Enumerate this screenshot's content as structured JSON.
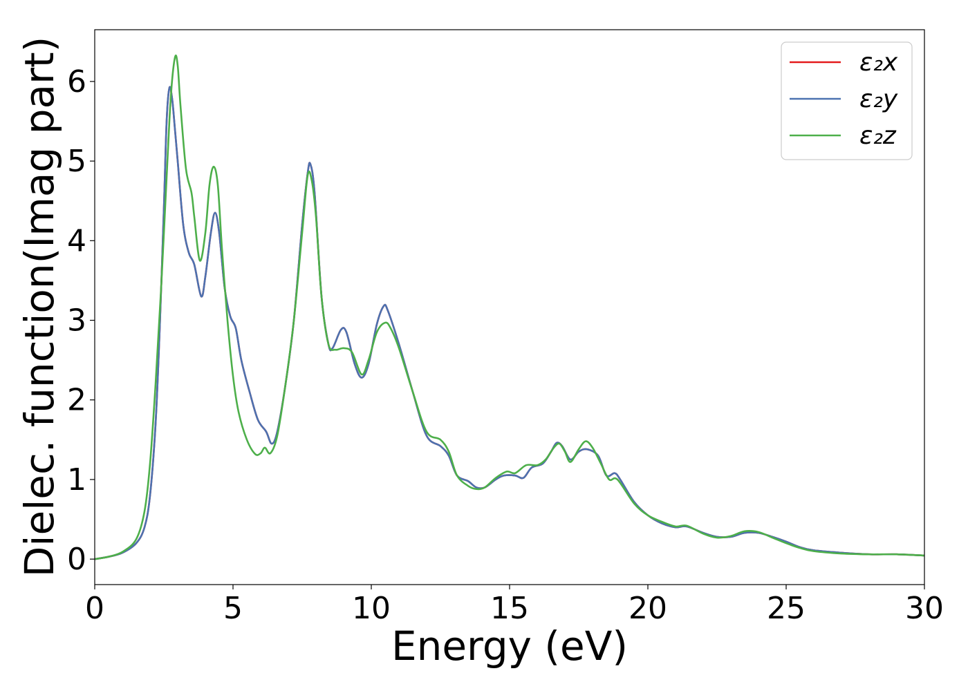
{
  "chart_data": {
    "type": "line",
    "xlabel": "Energy (eV)",
    "ylabel": "Dielec. function(Imag part)",
    "xlim": [
      0,
      30
    ],
    "ylim": [
      -0.32,
      6.65
    ],
    "x_ticks": [
      "0",
      "5",
      "10",
      "15",
      "20",
      "25",
      "30"
    ],
    "x_tick_values": [
      0,
      5,
      10,
      15,
      20,
      25,
      30
    ],
    "y_ticks": [
      "0",
      "1",
      "2",
      "3",
      "4",
      "5",
      "6"
    ],
    "y_tick_values": [
      0,
      1,
      2,
      3,
      4,
      5,
      6
    ],
    "grid": false,
    "legend_placement": "top-right",
    "series": [
      {
        "name": "ε₂x",
        "color": "#e41a1c",
        "points": [
          [
            0,
            0
          ],
          [
            0.5,
            0.03
          ],
          [
            1,
            0.08
          ],
          [
            1.5,
            0.2
          ],
          [
            1.8,
            0.4
          ],
          [
            2.0,
            0.8
          ],
          [
            2.2,
            1.7
          ],
          [
            2.35,
            2.9
          ],
          [
            2.5,
            4.4
          ],
          [
            2.6,
            5.5
          ],
          [
            2.7,
            5.92
          ],
          [
            2.8,
            5.78
          ],
          [
            2.9,
            5.4
          ],
          [
            3.0,
            5.0
          ],
          [
            3.2,
            4.2
          ],
          [
            3.4,
            3.85
          ],
          [
            3.6,
            3.7
          ],
          [
            3.85,
            3.3
          ],
          [
            4.0,
            3.55
          ],
          [
            4.2,
            4.1
          ],
          [
            4.35,
            4.35
          ],
          [
            4.5,
            4.1
          ],
          [
            4.7,
            3.4
          ],
          [
            4.9,
            3.05
          ],
          [
            5.1,
            2.9
          ],
          [
            5.3,
            2.5
          ],
          [
            5.6,
            2.1
          ],
          [
            5.9,
            1.75
          ],
          [
            6.2,
            1.6
          ],
          [
            6.4,
            1.45
          ],
          [
            6.6,
            1.6
          ],
          [
            6.9,
            2.2
          ],
          [
            7.2,
            3.0
          ],
          [
            7.5,
            4.2
          ],
          [
            7.7,
            4.85
          ],
          [
            7.8,
            4.96
          ],
          [
            7.95,
            4.6
          ],
          [
            8.2,
            3.3
          ],
          [
            8.45,
            2.7
          ],
          [
            8.6,
            2.65
          ],
          [
            8.9,
            2.88
          ],
          [
            9.1,
            2.85
          ],
          [
            9.4,
            2.45
          ],
          [
            9.65,
            2.28
          ],
          [
            9.9,
            2.45
          ],
          [
            10.2,
            2.95
          ],
          [
            10.45,
            3.18
          ],
          [
            10.6,
            3.12
          ],
          [
            11.0,
            2.7
          ],
          [
            11.5,
            2.1
          ],
          [
            12.0,
            1.55
          ],
          [
            12.5,
            1.42
          ],
          [
            12.8,
            1.3
          ],
          [
            13.1,
            1.05
          ],
          [
            13.5,
            0.98
          ],
          [
            13.8,
            0.9
          ],
          [
            14.1,
            0.9
          ],
          [
            14.5,
            1.0
          ],
          [
            14.8,
            1.05
          ],
          [
            15.2,
            1.05
          ],
          [
            15.5,
            1.02
          ],
          [
            15.8,
            1.15
          ],
          [
            16.2,
            1.2
          ],
          [
            16.5,
            1.35
          ],
          [
            16.7,
            1.46
          ],
          [
            16.9,
            1.42
          ],
          [
            17.2,
            1.25
          ],
          [
            17.5,
            1.35
          ],
          [
            17.8,
            1.38
          ],
          [
            18.2,
            1.3
          ],
          [
            18.5,
            1.05
          ],
          [
            18.8,
            1.08
          ],
          [
            19.0,
            1.0
          ],
          [
            19.5,
            0.72
          ],
          [
            20.0,
            0.55
          ],
          [
            20.5,
            0.45
          ],
          [
            21.0,
            0.4
          ],
          [
            21.4,
            0.41
          ],
          [
            22.0,
            0.33
          ],
          [
            22.5,
            0.28
          ],
          [
            23.0,
            0.28
          ],
          [
            23.5,
            0.33
          ],
          [
            24.0,
            0.33
          ],
          [
            24.5,
            0.28
          ],
          [
            25.0,
            0.22
          ],
          [
            25.5,
            0.15
          ],
          [
            26.0,
            0.11
          ],
          [
            27.0,
            0.08
          ],
          [
            28.0,
            0.06
          ],
          [
            29.0,
            0.06
          ],
          [
            30.0,
            0.045
          ]
        ]
      },
      {
        "name": "ε₂y",
        "color": "#4c72b0",
        "points": [
          [
            0,
            0
          ],
          [
            0.5,
            0.03
          ],
          [
            1,
            0.08
          ],
          [
            1.5,
            0.2
          ],
          [
            1.8,
            0.4
          ],
          [
            2.0,
            0.8
          ],
          [
            2.2,
            1.7
          ],
          [
            2.35,
            2.9
          ],
          [
            2.5,
            4.4
          ],
          [
            2.6,
            5.5
          ],
          [
            2.7,
            5.92
          ],
          [
            2.8,
            5.78
          ],
          [
            2.9,
            5.4
          ],
          [
            3.0,
            5.0
          ],
          [
            3.2,
            4.2
          ],
          [
            3.4,
            3.85
          ],
          [
            3.6,
            3.7
          ],
          [
            3.85,
            3.3
          ],
          [
            4.0,
            3.55
          ],
          [
            4.2,
            4.1
          ],
          [
            4.35,
            4.35
          ],
          [
            4.5,
            4.1
          ],
          [
            4.7,
            3.4
          ],
          [
            4.9,
            3.05
          ],
          [
            5.1,
            2.9
          ],
          [
            5.3,
            2.5
          ],
          [
            5.6,
            2.1
          ],
          [
            5.9,
            1.75
          ],
          [
            6.2,
            1.6
          ],
          [
            6.4,
            1.45
          ],
          [
            6.6,
            1.6
          ],
          [
            6.9,
            2.2
          ],
          [
            7.2,
            3.0
          ],
          [
            7.5,
            4.2
          ],
          [
            7.7,
            4.85
          ],
          [
            7.8,
            4.96
          ],
          [
            7.95,
            4.6
          ],
          [
            8.2,
            3.3
          ],
          [
            8.45,
            2.7
          ],
          [
            8.6,
            2.65
          ],
          [
            8.9,
            2.88
          ],
          [
            9.1,
            2.85
          ],
          [
            9.4,
            2.45
          ],
          [
            9.65,
            2.28
          ],
          [
            9.9,
            2.45
          ],
          [
            10.2,
            2.95
          ],
          [
            10.45,
            3.18
          ],
          [
            10.6,
            3.12
          ],
          [
            11.0,
            2.7
          ],
          [
            11.5,
            2.1
          ],
          [
            12.0,
            1.55
          ],
          [
            12.5,
            1.42
          ],
          [
            12.8,
            1.3
          ],
          [
            13.1,
            1.05
          ],
          [
            13.5,
            0.98
          ],
          [
            13.8,
            0.9
          ],
          [
            14.1,
            0.9
          ],
          [
            14.5,
            1.0
          ],
          [
            14.8,
            1.05
          ],
          [
            15.2,
            1.05
          ],
          [
            15.5,
            1.02
          ],
          [
            15.8,
            1.15
          ],
          [
            16.2,
            1.2
          ],
          [
            16.5,
            1.35
          ],
          [
            16.7,
            1.46
          ],
          [
            16.9,
            1.42
          ],
          [
            17.2,
            1.25
          ],
          [
            17.5,
            1.35
          ],
          [
            17.8,
            1.38
          ],
          [
            18.2,
            1.3
          ],
          [
            18.5,
            1.05
          ],
          [
            18.8,
            1.08
          ],
          [
            19.0,
            1.0
          ],
          [
            19.5,
            0.72
          ],
          [
            20.0,
            0.55
          ],
          [
            20.5,
            0.45
          ],
          [
            21.0,
            0.4
          ],
          [
            21.4,
            0.41
          ],
          [
            22.0,
            0.33
          ],
          [
            22.5,
            0.28
          ],
          [
            23.0,
            0.28
          ],
          [
            23.5,
            0.33
          ],
          [
            24.0,
            0.33
          ],
          [
            24.5,
            0.28
          ],
          [
            25.0,
            0.22
          ],
          [
            25.5,
            0.15
          ],
          [
            26.0,
            0.11
          ],
          [
            27.0,
            0.08
          ],
          [
            28.0,
            0.06
          ],
          [
            29.0,
            0.06
          ],
          [
            30.0,
            0.045
          ]
        ]
      },
      {
        "name": "ε₂z",
        "color": "#4daf4a",
        "points": [
          [
            0,
            0
          ],
          [
            0.5,
            0.03
          ],
          [
            1,
            0.09
          ],
          [
            1.5,
            0.25
          ],
          [
            1.8,
            0.6
          ],
          [
            2.0,
            1.2
          ],
          [
            2.2,
            2.2
          ],
          [
            2.4,
            3.4
          ],
          [
            2.6,
            4.8
          ],
          [
            2.75,
            5.8
          ],
          [
            2.9,
            6.3
          ],
          [
            3.0,
            6.2
          ],
          [
            3.1,
            5.7
          ],
          [
            3.3,
            4.9
          ],
          [
            3.5,
            4.6
          ],
          [
            3.6,
            4.3
          ],
          [
            3.8,
            3.75
          ],
          [
            4.0,
            4.1
          ],
          [
            4.15,
            4.7
          ],
          [
            4.3,
            4.93
          ],
          [
            4.45,
            4.7
          ],
          [
            4.6,
            3.9
          ],
          [
            4.8,
            3.0
          ],
          [
            5.0,
            2.3
          ],
          [
            5.2,
            1.85
          ],
          [
            5.5,
            1.5
          ],
          [
            5.8,
            1.32
          ],
          [
            6.0,
            1.33
          ],
          [
            6.15,
            1.4
          ],
          [
            6.35,
            1.33
          ],
          [
            6.6,
            1.55
          ],
          [
            6.9,
            2.2
          ],
          [
            7.2,
            3.0
          ],
          [
            7.5,
            4.1
          ],
          [
            7.7,
            4.82
          ],
          [
            7.85,
            4.75
          ],
          [
            8.0,
            4.3
          ],
          [
            8.2,
            3.3
          ],
          [
            8.45,
            2.7
          ],
          [
            8.7,
            2.63
          ],
          [
            9.0,
            2.65
          ],
          [
            9.3,
            2.6
          ],
          [
            9.65,
            2.32
          ],
          [
            9.9,
            2.5
          ],
          [
            10.2,
            2.85
          ],
          [
            10.5,
            2.97
          ],
          [
            10.7,
            2.9
          ],
          [
            11.0,
            2.65
          ],
          [
            11.5,
            2.1
          ],
          [
            12.0,
            1.6
          ],
          [
            12.5,
            1.5
          ],
          [
            12.8,
            1.35
          ],
          [
            13.1,
            1.05
          ],
          [
            13.5,
            0.92
          ],
          [
            13.8,
            0.88
          ],
          [
            14.1,
            0.9
          ],
          [
            14.5,
            1.02
          ],
          [
            14.9,
            1.1
          ],
          [
            15.2,
            1.08
          ],
          [
            15.6,
            1.18
          ],
          [
            16.0,
            1.18
          ],
          [
            16.3,
            1.25
          ],
          [
            16.6,
            1.4
          ],
          [
            16.8,
            1.45
          ],
          [
            17.0,
            1.35
          ],
          [
            17.2,
            1.22
          ],
          [
            17.5,
            1.38
          ],
          [
            17.75,
            1.48
          ],
          [
            18.0,
            1.4
          ],
          [
            18.3,
            1.2
          ],
          [
            18.6,
            1.0
          ],
          [
            18.9,
            1.0
          ],
          [
            19.5,
            0.7
          ],
          [
            20.0,
            0.55
          ],
          [
            20.5,
            0.47
          ],
          [
            21.0,
            0.41
          ],
          [
            21.4,
            0.42
          ],
          [
            22.0,
            0.32
          ],
          [
            22.5,
            0.27
          ],
          [
            23.0,
            0.29
          ],
          [
            23.5,
            0.35
          ],
          [
            24.0,
            0.34
          ],
          [
            24.5,
            0.27
          ],
          [
            25.0,
            0.2
          ],
          [
            25.5,
            0.14
          ],
          [
            26.0,
            0.1
          ],
          [
            27.0,
            0.07
          ],
          [
            28.0,
            0.06
          ],
          [
            29.0,
            0.06
          ],
          [
            30.0,
            0.045
          ]
        ]
      }
    ]
  }
}
